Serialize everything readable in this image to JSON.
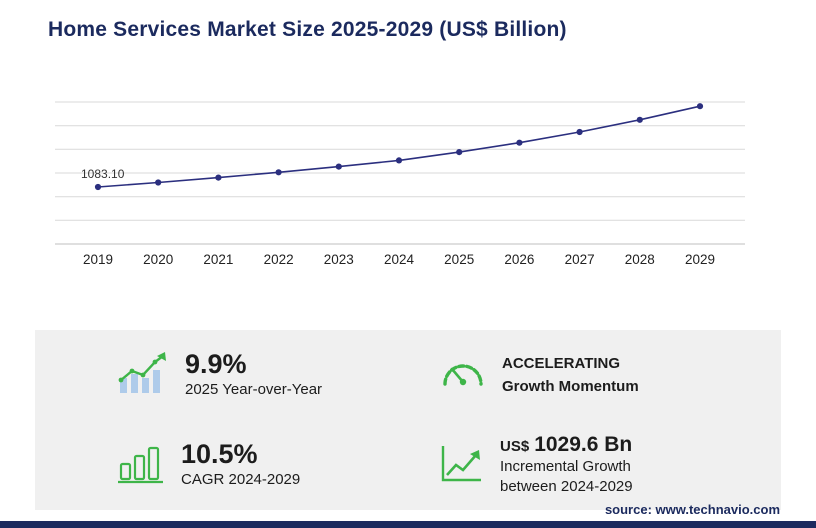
{
  "title": "Home Services Market Size 2025-2029 (US$ Billion)",
  "chart_data": {
    "type": "line",
    "title": "Home Services Market Size 2025-2029 (US$ Billion)",
    "x": [
      2019,
      2020,
      2021,
      2022,
      2023,
      2024,
      2025,
      2026,
      2027,
      2028,
      2029
    ],
    "values": [
      1083.1,
      1170,
      1262,
      1363,
      1472,
      1590,
      1748,
      1926,
      2130,
      2362,
      2620
    ],
    "first_point_label": "1083.10",
    "xlabel": "",
    "ylabel": "",
    "ylim": [
      0,
      2700
    ],
    "grid": true,
    "gridline_count": 7,
    "line_color": "#2b2f7f",
    "marker_color": "#2b2f7f",
    "grid_color": "#d9d9d9",
    "axis_color": "#bfbfbf",
    "tick_label_color": "#222222"
  },
  "stats": {
    "yoy": {
      "value": "9.9%",
      "label": "2025 Year-over-Year"
    },
    "momentum": {
      "line1": "ACCELERATING",
      "line2": "Growth Momentum"
    },
    "cagr": {
      "value": "10.5%",
      "label": "CAGR 2024-2029"
    },
    "incremental": {
      "prefix": "US$",
      "value": "1029.6 Bn",
      "label_line1": "Incremental Growth",
      "label_line2": "between 2024-2029"
    }
  },
  "colors": {
    "accent_navy": "#1b2a5e",
    "accent_green": "#3eb549",
    "icon_bar_blue": "#aecbea",
    "panel_gray": "#f0f0f0"
  },
  "source": "source: www.technavio.com"
}
